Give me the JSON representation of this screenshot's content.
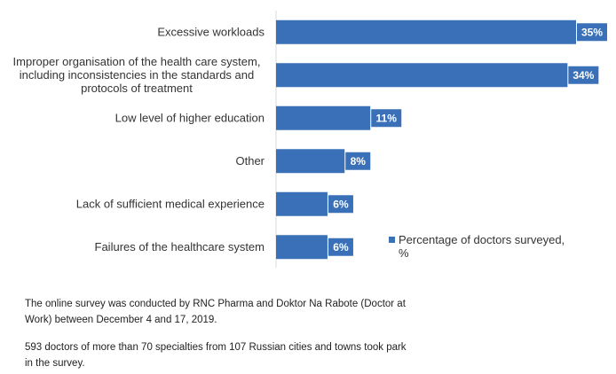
{
  "chart_data": {
    "type": "bar",
    "orientation": "horizontal",
    "categories": [
      "Excessive workloads",
      "Improper organisation of the health care system, including inconsistencies in the standards and protocols of treatment",
      "Low level of higher education",
      "Other",
      "Lack of sufficient medical experience",
      "Failures of the healthcare system"
    ],
    "category_lines": [
      [
        "Excessive workloads"
      ],
      [
        "Improper organisation of the health care system,",
        "including inconsistencies in the standards and",
        "protocols of treatment"
      ],
      [
        "Low level of higher education"
      ],
      [
        "Other"
      ],
      [
        "Lack of sufficient medical experience"
      ],
      [
        "Failures of the healthcare system"
      ]
    ],
    "series": [
      {
        "name": "Percentage of doctors surveyed, %",
        "values": [
          35,
          34,
          11,
          8,
          6,
          6
        ]
      }
    ],
    "data_labels": [
      "35%",
      "34%",
      "11%",
      "8%",
      "6%",
      "6%"
    ],
    "xlim": [
      0,
      35
    ],
    "grid": false,
    "legend_position": "right",
    "bar_color": "#3a70b8",
    "axis_color": "#d9d9d9"
  },
  "legend": {
    "label": "Percentage of doctors surveyed, %"
  },
  "notes": {
    "note1": "The online survey was conducted by RNC Pharma and Doktor Na Rabote (Doctor at Work) between December 4 and 17, 2019.",
    "note2": "593 doctors of more than 70 specialties from 107 Russian cities and towns took park in the survey."
  }
}
